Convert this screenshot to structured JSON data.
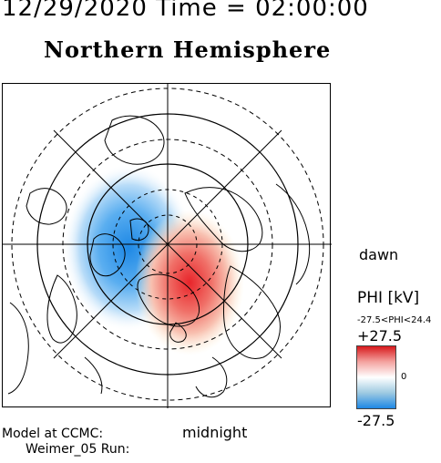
{
  "header": {
    "time_line": "12/29/2020 Time = 02:00:00"
  },
  "map": {
    "title": "Northern Hemisphere",
    "dawn_label": "dawn",
    "midnight_label": "midnight",
    "projection": "polar-stereographic",
    "positive_cell": "dawn-side (red)",
    "negative_cell": "dusk/midnight-side (blue)"
  },
  "model": {
    "line1": "Model at CCMC:",
    "line2": "Weimer_05 Run:"
  },
  "colorbar": {
    "title": "PHI [kV]",
    "range_text": "-27.5<PHI<24.4",
    "max_label": "+27.5",
    "zero_label": "0",
    "min_label": "-27.5",
    "colors": {
      "max": "#d7191c",
      "mid": "#ffffff",
      "min": "#1e88e5"
    }
  }
}
